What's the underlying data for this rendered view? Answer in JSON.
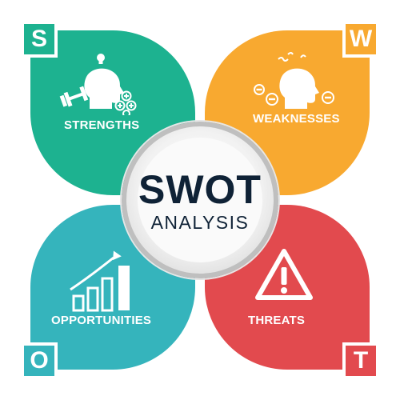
{
  "center": {
    "title": "SWOT",
    "subtitle": "ANALYSIS"
  },
  "quadrants": [
    {
      "letter": "S",
      "label": "STRENGTHS",
      "color": "#1db290",
      "icon": "head-dumbbell-plus-icon"
    },
    {
      "letter": "W",
      "label": "WEAKNESSES",
      "color": "#f8a930",
      "icon": "head-minus-icon"
    },
    {
      "letter": "O",
      "label": "OPPORTUNITIES",
      "color": "#35b4bc",
      "icon": "growth-bar-chart-icon"
    },
    {
      "letter": "T",
      "label": "THREATS",
      "color": "#e24a4e",
      "icon": "warning-triangle-icon"
    }
  ]
}
